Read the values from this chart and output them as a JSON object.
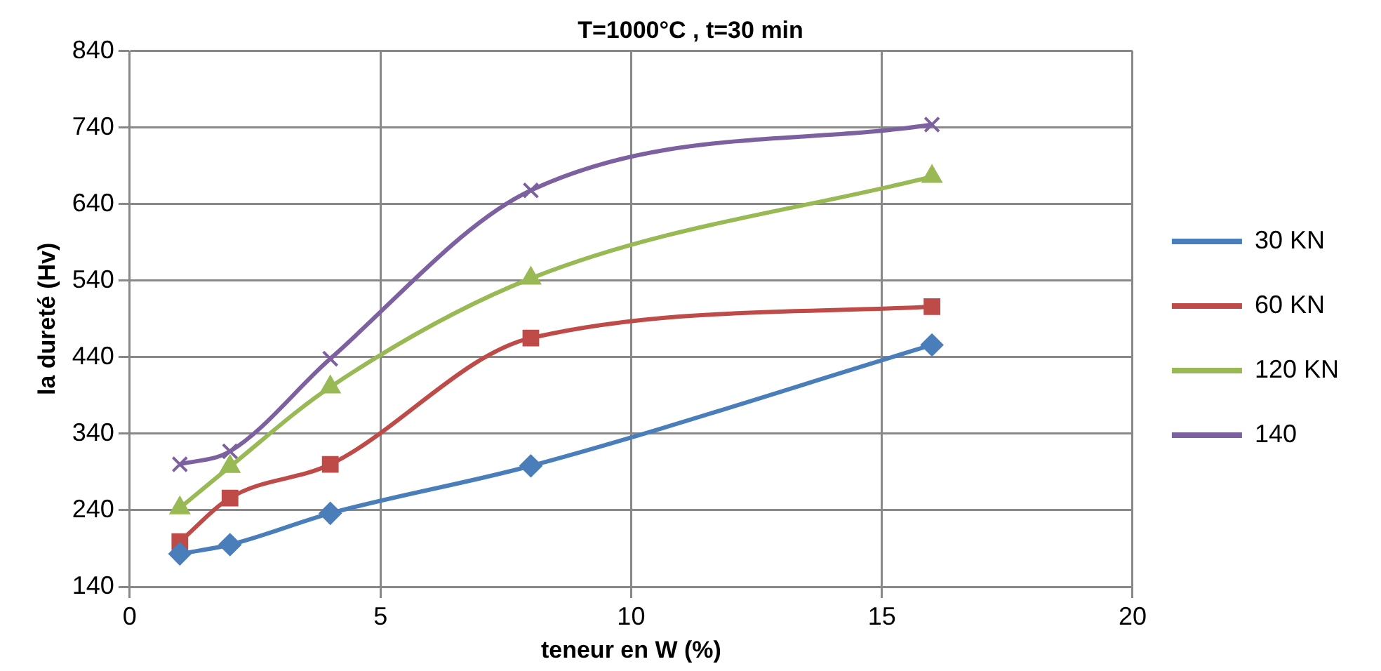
{
  "chart_data": {
    "type": "line",
    "title": "T=1000°C , t=30 min",
    "xlabel": "teneur en W (%)",
    "ylabel": "la dureté (Hv)",
    "x": [
      1,
      2,
      4,
      8,
      16
    ],
    "series": [
      {
        "name": "30 KN",
        "color": "#4a7ebb",
        "marker": "diamond",
        "values": [
          183,
          195,
          236,
          298,
          456
        ]
      },
      {
        "name": "60 KN",
        "color": "#be4b48",
        "marker": "square",
        "values": [
          199,
          256,
          300,
          465,
          506
        ]
      },
      {
        "name": "120 KN",
        "color": "#98b954",
        "marker": "triangle",
        "values": [
          243,
          297,
          401,
          543,
          676
        ]
      },
      {
        "name": "140",
        "color": "#7d60a0",
        "marker": "cross",
        "values": [
          300,
          317,
          438,
          658,
          744
        ]
      }
    ],
    "xlim": [
      0,
      20
    ],
    "xticks": [
      0,
      5,
      10,
      15,
      20
    ],
    "ylim": [
      140,
      840
    ],
    "yticks": [
      140,
      240,
      340,
      440,
      540,
      640,
      740,
      840
    ],
    "grid": true,
    "legend": "right"
  }
}
